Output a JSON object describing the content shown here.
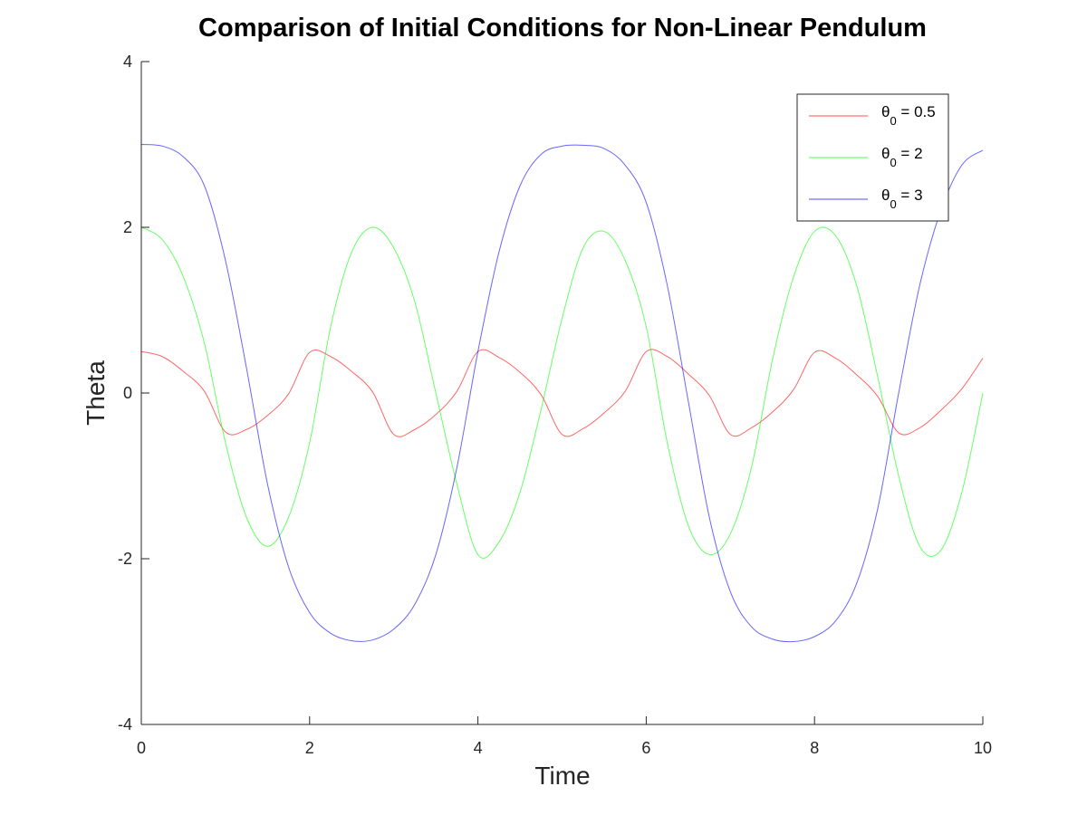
{
  "chart_data": {
    "type": "line",
    "title": "Comparison of Initial Conditions for Non-Linear Pendulum",
    "xlabel": "Time",
    "ylabel": "Theta",
    "xlim": [
      0,
      10
    ],
    "ylim": [
      -4,
      4
    ],
    "xticks": [
      "0",
      "2",
      "4",
      "6",
      "8",
      "10"
    ],
    "yticks": [
      "-4",
      "-2",
      "0",
      "2",
      "4"
    ],
    "grid": false,
    "legend_position": "top-right",
    "series": [
      {
        "legend": {
          "prefix": "θ",
          "sub": "0",
          "suffix": " = 0.5"
        },
        "color": "#ff0000",
        "x": [
          0,
          0.25,
          0.5,
          0.75,
          1.0,
          1.25,
          1.5,
          1.75,
          2.0,
          2.25,
          2.5,
          2.75,
          3.0,
          3.25,
          3.5,
          3.75,
          4.0,
          4.25,
          4.5,
          4.75,
          5.0,
          5.25,
          5.5,
          5.75,
          6.0,
          6.25,
          6.5,
          6.75,
          7.0,
          7.25,
          7.5,
          7.75,
          8.0,
          8.25,
          8.5,
          8.75,
          9.0,
          9.25,
          9.5,
          9.75,
          10.0
        ],
        "y": [
          0.5,
          0.44,
          0.26,
          0.02,
          -0.47,
          -0.44,
          -0.27,
          -0.01,
          0.49,
          0.44,
          0.26,
          0.01,
          -0.5,
          -0.44,
          -0.26,
          0.02,
          0.5,
          0.43,
          0.25,
          -0.02,
          -0.5,
          -0.43,
          -0.24,
          0.02,
          0.5,
          0.44,
          0.23,
          -0.03,
          -0.5,
          -0.42,
          -0.23,
          0.04,
          0.49,
          0.42,
          0.22,
          -0.04,
          -0.48,
          -0.42,
          -0.21,
          0.05,
          0.42
        ]
      },
      {
        "legend": {
          "prefix": "θ",
          "sub": "0",
          "suffix": " = 2"
        },
        "color": "#00ff00",
        "x": [
          0,
          0.25,
          0.5,
          0.75,
          1.0,
          1.25,
          1.5,
          1.75,
          2.0,
          2.25,
          2.5,
          2.75,
          3.0,
          3.25,
          3.5,
          3.75,
          4.0,
          4.25,
          4.5,
          4.75,
          5.0,
          5.25,
          5.5,
          5.75,
          6.0,
          6.25,
          6.5,
          6.75,
          7.0,
          7.25,
          7.5,
          7.75,
          8.0,
          8.25,
          8.5,
          8.75,
          9.0,
          9.25,
          9.5,
          9.75,
          10.0
        ],
        "y": [
          2.0,
          1.85,
          1.4,
          0.6,
          -0.6,
          -1.5,
          -1.85,
          -1.5,
          -0.6,
          0.8,
          1.7,
          2.0,
          1.75,
          1.1,
          0.0,
          -1.1,
          -1.95,
          -1.8,
          -1.2,
          -0.2,
          0.9,
          1.75,
          1.95,
          1.6,
          0.8,
          -0.6,
          -1.6,
          -1.95,
          -1.7,
          -0.9,
          0.4,
          1.4,
          1.95,
          1.9,
          1.3,
          0.2,
          -1.0,
          -1.85,
          -1.9,
          -1.2,
          0.0
        ]
      },
      {
        "legend": {
          "prefix": "θ",
          "sub": "0",
          "suffix": " = 3"
        },
        "color": "#0000ff",
        "x": [
          0,
          0.25,
          0.5,
          0.75,
          1.0,
          1.25,
          1.5,
          1.75,
          2.0,
          2.25,
          2.5,
          2.75,
          3.0,
          3.25,
          3.5,
          3.75,
          4.0,
          4.25,
          4.5,
          4.75,
          5.0,
          5.25,
          5.5,
          5.75,
          6.0,
          6.25,
          6.5,
          6.75,
          7.0,
          7.25,
          7.5,
          7.75,
          8.0,
          8.25,
          8.5,
          8.75,
          9.0,
          9.25,
          9.5,
          9.75,
          10.0
        ],
        "y": [
          3.0,
          2.98,
          2.85,
          2.5,
          1.6,
          0.3,
          -1.1,
          -2.1,
          -2.65,
          -2.9,
          -2.99,
          -2.98,
          -2.85,
          -2.55,
          -1.95,
          -0.9,
          0.5,
          1.7,
          2.5,
          2.88,
          2.98,
          2.99,
          2.95,
          2.75,
          2.3,
          1.3,
          -0.1,
          -1.5,
          -2.4,
          -2.82,
          -2.97,
          -3.0,
          -2.94,
          -2.75,
          -2.3,
          -1.4,
          0.0,
          1.3,
          2.2,
          2.75,
          2.93
        ]
      }
    ]
  }
}
